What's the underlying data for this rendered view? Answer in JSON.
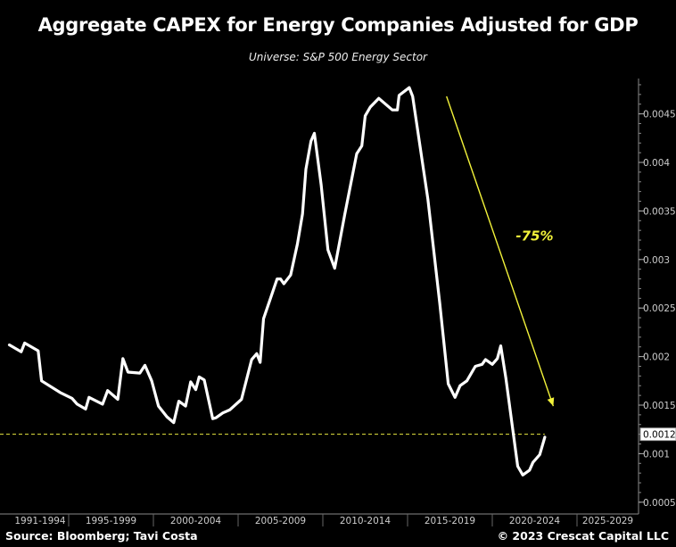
{
  "chart_data": {
    "type": "line",
    "title": "Aggregate CAPEX for Energy Companies Adjusted for GDP",
    "subtitle": "Universe: S&P 500 Energy Sector",
    "xlabel": "",
    "ylabel": "",
    "x_tick_labels": [
      "1991-1994",
      "1995-1999",
      "2000-2004",
      "2005-2009",
      "2010-2014",
      "2015-2019",
      "2020-2024",
      "2025-2029"
    ],
    "y_tick_labels": [
      "0.0005",
      "0.001",
      "0.0015",
      "0.002",
      "0.0025",
      "0.003",
      "0.0035",
      "0.004",
      "0.0045"
    ],
    "y_ticks": [
      0.0005,
      0.001,
      0.0015,
      0.002,
      0.0025,
      0.003,
      0.0035,
      0.004,
      0.0045
    ],
    "xlim": [
      1991,
      2030
    ],
    "ylim": [
      0.00045,
      0.0049
    ],
    "y_axis_position": "right",
    "grid": false,
    "line_color": "#ffffff",
    "last_value_label": "0.0012",
    "reference_line": {
      "value": 0.0012,
      "color": "#e8e840",
      "style": "dashed"
    },
    "annotation": {
      "text": "-75%",
      "color": "#f2f23a",
      "arrow_from": [
        2017.3,
        0.00468
      ],
      "arrow_to": [
        2023.6,
        0.00149
      ],
      "text_at": [
        2022.5,
        0.00325
      ]
    },
    "series": [
      {
        "x": [
          1991.5,
          1992.2,
          1992.4,
          1993.2,
          1993.4,
          1994.5,
          1995.2,
          1995.5,
          1996.0,
          1996.2,
          1997.0,
          1997.3,
          1997.9,
          1998.2,
          1998.5,
          1999.2,
          1999.5,
          1999.9,
          2000.3,
          2000.8,
          2001.2,
          2001.5,
          2001.9,
          2002.2,
          2002.5,
          2002.7,
          2003.0,
          2003.5,
          2003.7,
          2004.1,
          2004.5,
          2005.2,
          2005.8,
          2006.1,
          2006.3,
          2006.5,
          2007.3,
          2007.5,
          2007.7,
          2008.1,
          2008.5,
          2008.8,
          2009.0,
          2009.3,
          2009.5,
          2009.9,
          2010.3,
          2010.7,
          2011.3,
          2012.0,
          2012.3,
          2012.5,
          2012.8,
          2013.3,
          2014.1,
          2014.4,
          2014.5,
          2015.1,
          2015.3,
          2016.2,
          2016.9,
          2017.4,
          2017.8,
          2018.1,
          2018.5,
          2019.0,
          2019.4,
          2019.6,
          2020.0,
          2020.3,
          2020.5,
          2020.8,
          2021.5,
          2021.8,
          2022.2,
          2022.4,
          2022.8,
          2023.1
        ],
        "values": [
          0.00212,
          0.00205,
          0.00214,
          0.00206,
          0.00175,
          0.00163,
          0.00157,
          0.00151,
          0.00146,
          0.00158,
          0.00151,
          0.00165,
          0.00156,
          0.00198,
          0.00184,
          0.00183,
          0.00191,
          0.00175,
          0.00149,
          0.00138,
          0.00132,
          0.00154,
          0.00149,
          0.00174,
          0.00166,
          0.00179,
          0.00176,
          0.00136,
          0.00137,
          0.00142,
          0.00145,
          0.00156,
          0.00197,
          0.00203,
          0.00194,
          0.00239,
          0.0028,
          0.0028,
          0.00275,
          0.00284,
          0.00316,
          0.00347,
          0.00393,
          0.00422,
          0.0043,
          0.00377,
          0.0031,
          0.00291,
          0.00347,
          0.00409,
          0.00417,
          0.00448,
          0.00457,
          0.00466,
          0.00454,
          0.00454,
          0.00469,
          0.00477,
          0.00468,
          0.00362,
          0.00255,
          0.00172,
          0.00158,
          0.0017,
          0.00175,
          0.0019,
          0.00192,
          0.00197,
          0.00192,
          0.00198,
          0.00211,
          0.00178,
          0.00087,
          0.00078,
          0.00083,
          0.00091,
          0.00099,
          0.00117
        ]
      }
    ]
  },
  "footer": {
    "source": "Source: Bloomberg; Tavi Costa",
    "copyright": "© 2023 Crescat Capital LLC"
  }
}
